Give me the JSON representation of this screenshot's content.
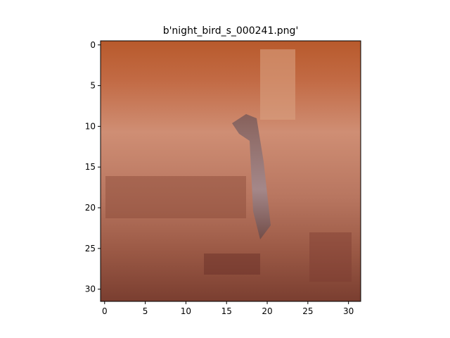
{
  "chart_data": {
    "type": "image",
    "title": "b'night_bird_s_000241.png'",
    "xlim": [
      -0.5,
      31.5
    ],
    "ylim": [
      31.5,
      -0.5
    ],
    "xticks": [
      0,
      5,
      10,
      15,
      20,
      25,
      30
    ],
    "yticks": [
      0,
      5,
      10,
      15,
      20,
      25,
      30
    ]
  }
}
